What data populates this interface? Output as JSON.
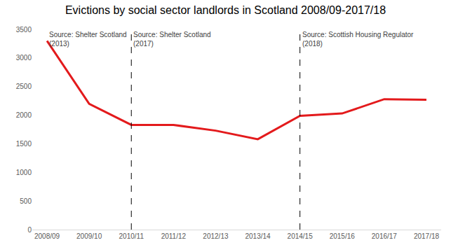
{
  "chart_data": {
    "type": "line",
    "title": "Evictions by social sector landlords in Scotland 2008/09-2017/18",
    "categories": [
      "2008/09",
      "2009/10",
      "2010/11",
      "2011/12",
      "2012/13",
      "2013/14",
      "2014/15",
      "2015/16",
      "2016/17",
      "2017/18"
    ],
    "values": [
      3300,
      2200,
      1830,
      1830,
      1730,
      1580,
      1990,
      2030,
      2280,
      2270
    ],
    "color": "#e31a1c",
    "ylim": [
      0,
      3500
    ],
    "yticks": [
      0,
      500,
      1000,
      1500,
      2000,
      2500,
      3000,
      3500
    ],
    "grid": false,
    "annotations": [
      {
        "text": "Source: Shelter Scotland (2013)",
        "category": "2008/09"
      },
      {
        "text": "Source: Shelter Scotland (2017)",
        "category": "2010/11"
      },
      {
        "text": "Source: Scottish Housing Regulator (2018)",
        "category": "2014/15"
      }
    ]
  }
}
